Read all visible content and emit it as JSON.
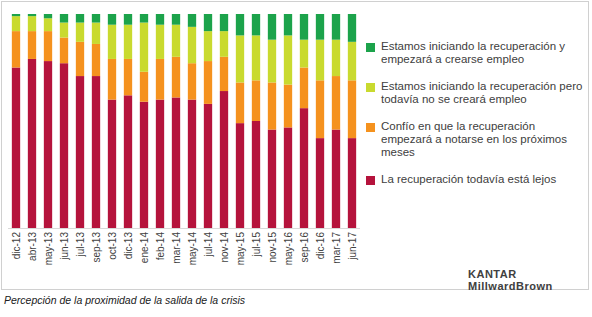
{
  "chart_data": {
    "type": "bar",
    "stacked": true,
    "tick_labels": "x",
    "legend": "right",
    "title": "Percepción de la proximidad de la salida de la crisis",
    "annotations": [
      "KANTAR MillwardBrown"
    ],
    "categories": [
      "dic-12",
      "abr-13",
      "may-13",
      "jun-13",
      "jul-13",
      "sep-13",
      "oct-13",
      "dic-13",
      "ene-14",
      "feb-14",
      "mar-14",
      "may-14",
      "jul-14",
      "nov-14",
      "may-15",
      "jul-15",
      "nov-15",
      "may-16",
      "sep-16",
      "dic-16",
      "mar-17",
      "jun-17"
    ],
    "ylim": [
      0,
      100
    ],
    "series": [
      {
        "name": "La recuperación todavía está lejos",
        "color": "#b5133c",
        "values": [
          75,
          79,
          78,
          77,
          71,
          71,
          60,
          62,
          59,
          60,
          61,
          60,
          58,
          64,
          49,
          50,
          46,
          47,
          56,
          42,
          46,
          42
        ]
      },
      {
        "name": "Confío en que la recuperación empezará a notarse en los próximos meses",
        "color": "#f5921e",
        "values": [
          17,
          13,
          14,
          12,
          16,
          15,
          19,
          17,
          14,
          19,
          19,
          17,
          20,
          16,
          19,
          19,
          22,
          20,
          19,
          27,
          25,
          27
        ]
      },
      {
        "name": "Estamos iniciando la recuperación pero todavía no se creará empleo",
        "color": "#c9da2f",
        "values": [
          7,
          7,
          6,
          7,
          9,
          10,
          16,
          16,
          23,
          16,
          15,
          17,
          14,
          12,
          22,
          21,
          20,
          23,
          13,
          19,
          17,
          18
        ]
      },
      {
        "name": "Estamos iniciando la recuperación y empezará a crearse empleo",
        "color": "#1ca34b",
        "values": [
          1,
          1,
          2,
          4,
          4,
          4,
          5,
          5,
          4,
          5,
          5,
          6,
          8,
          8,
          10,
          10,
          12,
          10,
          12,
          12,
          12,
          13
        ]
      }
    ]
  }
}
